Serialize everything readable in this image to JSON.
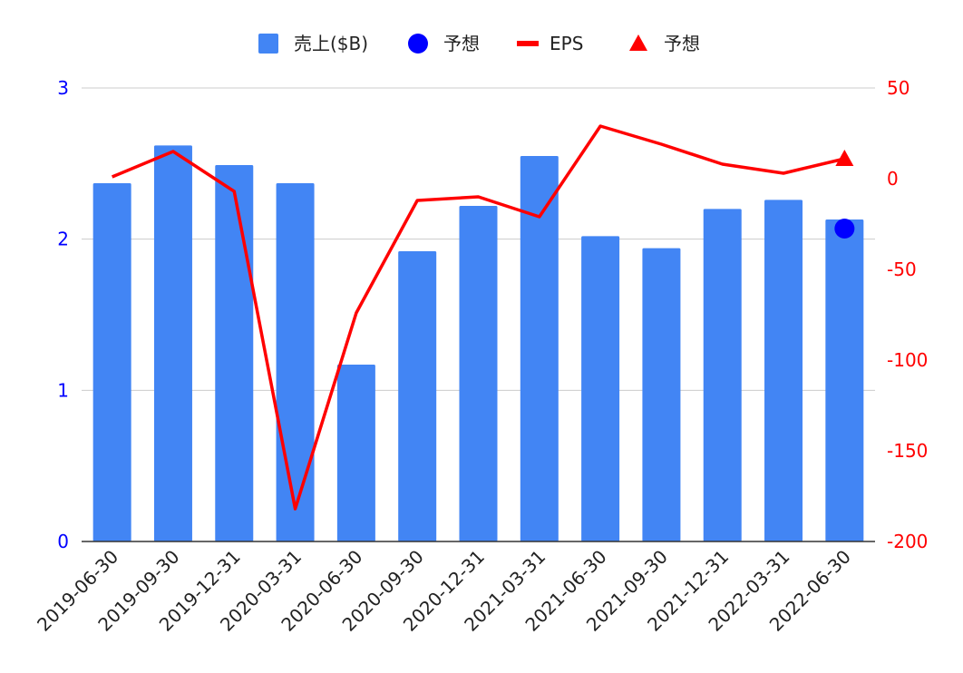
{
  "chart_data": {
    "type": "bar",
    "categories": [
      "2019-06-30",
      "2019-09-30",
      "2019-12-31",
      "2020-03-31",
      "2020-06-30",
      "2020-09-30",
      "2020-12-31",
      "2021-03-31",
      "2021-06-30",
      "2021-09-30",
      "2021-12-31",
      "2022-03-31",
      "2022-06-30"
    ],
    "series": [
      {
        "name": "売上($B)",
        "kind": "bar",
        "axis": "left",
        "color": "#4285f4",
        "values": [
          2.37,
          2.62,
          2.49,
          2.37,
          1.17,
          1.92,
          2.22,
          2.55,
          2.02,
          1.94,
          2.2,
          2.26,
          2.13
        ]
      },
      {
        "name": "予想",
        "kind": "point",
        "marker": "circle",
        "axis": "left",
        "color": "#0000ff",
        "values": [
          null,
          null,
          null,
          null,
          null,
          null,
          null,
          null,
          null,
          null,
          null,
          null,
          2.07
        ]
      },
      {
        "name": "EPS",
        "kind": "line",
        "axis": "right",
        "color": "#ff0000",
        "values": [
          1,
          15,
          -7,
          -182,
          -74,
          -12,
          -10,
          -21,
          29,
          19,
          8,
          3,
          11
        ]
      },
      {
        "name": "予想",
        "kind": "point",
        "marker": "triangle",
        "axis": "right",
        "color": "#ff0000",
        "values": [
          null,
          null,
          null,
          null,
          null,
          null,
          null,
          null,
          null,
          null,
          null,
          null,
          11
        ]
      }
    ],
    "left_axis": {
      "ylim": [
        0,
        3
      ],
      "ticks": [
        "0",
        "1",
        "2",
        "3"
      ],
      "color": "#0000ff"
    },
    "right_axis": {
      "ylim": [
        -200,
        50
      ],
      "ticks": [
        "-200",
        "-150",
        "-100",
        "-50",
        "0",
        "50"
      ],
      "color": "#ff0000"
    },
    "grid": true,
    "legend_position": "top-center"
  }
}
